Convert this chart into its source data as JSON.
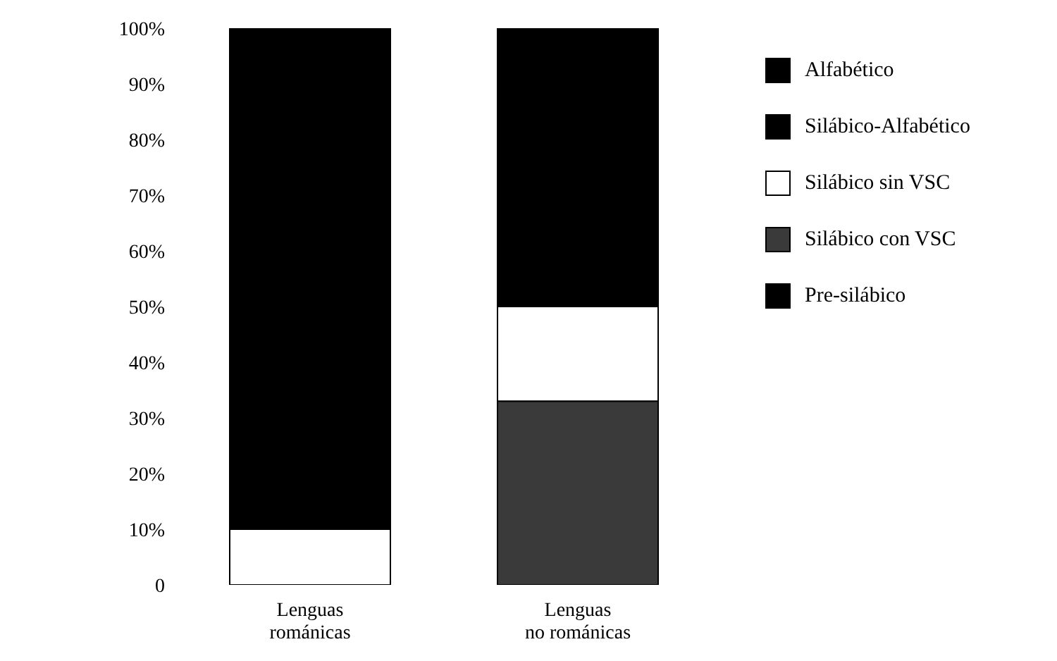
{
  "chart_data": {
    "type": "bar",
    "stacked": true,
    "categories": [
      "Lenguas románicas",
      "Lenguas no románicas"
    ],
    "series": [
      {
        "name": "Pre-silábico",
        "color": "#000000",
        "values": [
          0,
          0
        ]
      },
      {
        "name": "Silábico con VSC",
        "color": "#3a3a3a",
        "values": [
          0,
          33
        ]
      },
      {
        "name": "Silábico sin VSC",
        "color": "#ffffff",
        "values": [
          10,
          17
        ]
      },
      {
        "name": "Silábico-Alfabético",
        "color": "#000000",
        "values": [
          0,
          0
        ]
      },
      {
        "name": "Alfabético",
        "color": "#000000",
        "values": [
          90,
          50
        ]
      }
    ],
    "ylim": [
      0,
      100
    ],
    "yticks": [
      {
        "value": 0,
        "label": "0"
      },
      {
        "value": 10,
        "label": "10%"
      },
      {
        "value": 20,
        "label": "20%"
      },
      {
        "value": 30,
        "label": "30%"
      },
      {
        "value": 40,
        "label": "40%"
      },
      {
        "value": 50,
        "label": "50%"
      },
      {
        "value": 60,
        "label": "60%"
      },
      {
        "value": 70,
        "label": "70%"
      },
      {
        "value": 80,
        "label": "80%"
      },
      {
        "value": 90,
        "label": "90%"
      },
      {
        "value": 100,
        "label": "100%"
      }
    ],
    "grid": false,
    "legend": "top right"
  }
}
